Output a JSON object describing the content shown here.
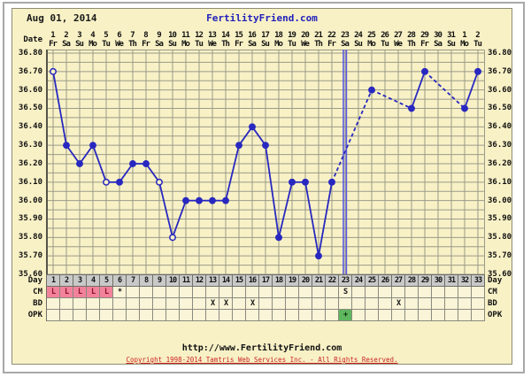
{
  "header": {
    "date": "Aug 01, 2014",
    "site": "FertilityFriend.com"
  },
  "colors": {
    "panel_bg": "#f8f1c6",
    "grid": "#9a9a88",
    "line_blue": "#2828c0",
    "ovulation_line": "#5a5ae0",
    "day_row_bg": "#c9c9c9",
    "menses_pink": "#f2829b",
    "opk_green": "#5eb75e",
    "site_blue": "#2121bb",
    "copyright_red": "#cc2222",
    "cell_cream": "#faf4d8"
  },
  "date_row": {
    "label": "Date",
    "numbers": [
      "1",
      "2",
      "3",
      "4",
      "5",
      "6",
      "7",
      "8",
      "9",
      "10",
      "11",
      "12",
      "13",
      "14",
      "15",
      "16",
      "17",
      "18",
      "19",
      "20",
      "21",
      "22",
      "23",
      "24",
      "25",
      "26",
      "27",
      "28",
      "29",
      "30",
      "31",
      "1",
      "2"
    ],
    "weekdays": [
      "Fr",
      "Sa",
      "Su",
      "Mo",
      "Tu",
      "We",
      "Th",
      "Fr",
      "Sa",
      "Su",
      "Mo",
      "Tu",
      "We",
      "Th",
      "Fr",
      "Sa",
      "Su",
      "Mo",
      "Tu",
      "We",
      "Th",
      "Fr",
      "Sa",
      "Su",
      "Mo",
      "Tu",
      "We",
      "Th",
      "Fr",
      "Sa",
      "Su",
      "Mo",
      "Tu"
    ]
  },
  "axis": {
    "y_ticks": [
      "36.80",
      "36.70",
      "36.60",
      "36.50",
      "36.40",
      "36.30",
      "36.20",
      "36.10",
      "36.00",
      "35.90",
      "35.80",
      "35.70",
      "35.60"
    ]
  },
  "chart_data": {
    "type": "line",
    "x_days": [
      1,
      2,
      3,
      4,
      5,
      6,
      7,
      8,
      9,
      10,
      11,
      12,
      13,
      14,
      15,
      16,
      17,
      18,
      19,
      20,
      21,
      22,
      23,
      24,
      25,
      26,
      27,
      28,
      29,
      30,
      31,
      32,
      33
    ],
    "temps": [
      36.7,
      36.3,
      36.2,
      36.3,
      36.1,
      36.1,
      36.2,
      36.2,
      36.1,
      35.8,
      36.0,
      36.0,
      36.0,
      36.0,
      36.3,
      36.4,
      36.3,
      35.8,
      36.1,
      36.1,
      35.7,
      36.1,
      null,
      null,
      36.6,
      null,
      null,
      36.5,
      36.7,
      null,
      null,
      36.5,
      36.7
    ],
    "open_circle_days": [
      1,
      5,
      9,
      10
    ],
    "ovulation_line_day": 23,
    "ylim": [
      35.6,
      36.85
    ],
    "ytick_step": 0.1,
    "gaps_drawn_dashed": true
  },
  "rows": {
    "labels": [
      "Day",
      "CM",
      "BD",
      "OPK"
    ],
    "day_values": [
      "1",
      "2",
      "3",
      "4",
      "5",
      "6",
      "7",
      "8",
      "9",
      "10",
      "11",
      "12",
      "13",
      "14",
      "15",
      "16",
      "17",
      "18",
      "19",
      "20",
      "21",
      "22",
      "23",
      "24",
      "25",
      "26",
      "27",
      "28",
      "29",
      "30",
      "31",
      "32",
      "33"
    ],
    "cm": {
      "1": "L",
      "2": "L",
      "3": "L",
      "4": "L",
      "5": "L",
      "6": "*",
      "23": "S"
    },
    "cm_menses_days": [
      1,
      2,
      3,
      4,
      5
    ],
    "bd": {
      "13": "X",
      "14": "X",
      "16": "X",
      "27": "X"
    },
    "opk": {
      "23": "+"
    },
    "opk_positive_days": [
      23
    ]
  },
  "footer": {
    "url": "http://www.FertilityFriend.com",
    "copyright": "Copyright 1998-2014 Tamtris Web Services Inc. - All Rights Reserved."
  }
}
